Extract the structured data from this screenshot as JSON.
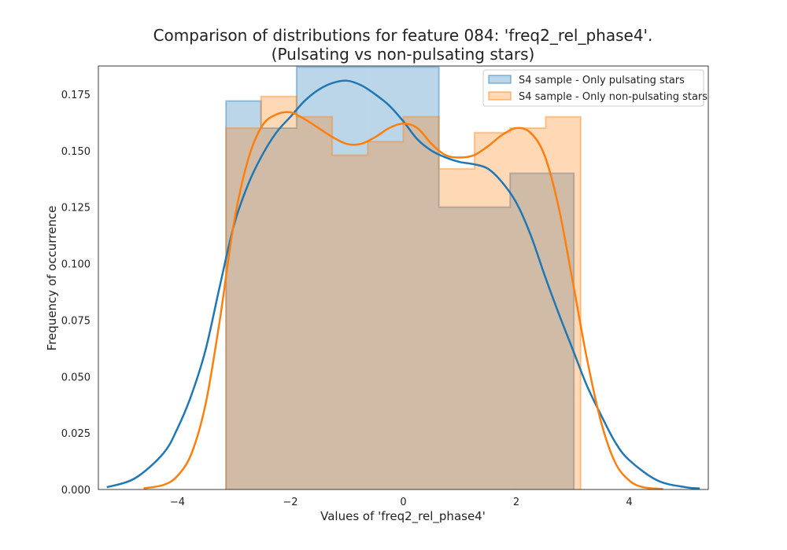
{
  "chart_data": {
    "type": "histogram-kde",
    "title": "Comparison of distributions for feature 084: 'freq2_rel_phase4'.",
    "subtitle": "(Pulsating vs non-pulsating stars)",
    "xlabel": "Values of 'freq2_rel_phase4'",
    "ylabel": "Frequency of occurrence",
    "xlim": [
      -5.4,
      5.4
    ],
    "ylim": [
      0,
      0.1875
    ],
    "x_ticks": [
      -4,
      -2,
      0,
      2,
      4
    ],
    "x_tick_labels": [
      "−4",
      "−2",
      "0",
      "2",
      "4"
    ],
    "y_ticks": [
      0.0,
      0.025,
      0.05,
      0.075,
      0.1,
      0.125,
      0.15,
      0.175
    ],
    "y_tick_labels": [
      "0.000",
      "0.025",
      "0.050",
      "0.075",
      "0.100",
      "0.125",
      "0.150",
      "0.175"
    ],
    "grid": false,
    "legend_position": "top-right",
    "series": [
      {
        "name": "S4 sample - Only pulsating stars",
        "color": "#1f77b4",
        "hist_edges": [
          -3.14,
          -2.52,
          -1.89,
          -0.63,
          0.63,
          1.89,
          3.02
        ],
        "hist_values": [
          0.172,
          0.16,
          0.187,
          0.187,
          0.125,
          0.14
        ],
        "kde_x": [
          -5.25,
          -4.75,
          -4.25,
          -4.0,
          -3.75,
          -3.5,
          -3.25,
          -3.0,
          -2.75,
          -2.5,
          -2.25,
          -2.0,
          -1.75,
          -1.5,
          -1.25,
          -1.0,
          -0.75,
          -0.5,
          -0.25,
          0.0,
          0.25,
          0.5,
          0.75,
          1.0,
          1.25,
          1.5,
          1.75,
          2.0,
          2.25,
          2.5,
          2.75,
          3.0,
          3.25,
          3.5,
          3.75,
          4.0,
          4.5,
          5.0,
          5.25
        ],
        "kde_y": [
          0.001,
          0.005,
          0.016,
          0.027,
          0.042,
          0.062,
          0.09,
          0.117,
          0.135,
          0.148,
          0.158,
          0.165,
          0.172,
          0.177,
          0.18,
          0.181,
          0.179,
          0.175,
          0.17,
          0.163,
          0.155,
          0.15,
          0.147,
          0.145,
          0.144,
          0.142,
          0.136,
          0.127,
          0.113,
          0.095,
          0.078,
          0.062,
          0.046,
          0.033,
          0.021,
          0.013,
          0.004,
          0.001,
          0.0005
        ]
      },
      {
        "name": "S4 sample - Only non-pulsating stars",
        "color": "#ff7f0e",
        "hist_edges": [
          -3.14,
          -2.52,
          -1.89,
          -1.26,
          -0.63,
          0.0,
          0.63,
          1.26,
          1.89,
          2.52,
          3.14
        ],
        "hist_values": [
          0.16,
          0.174,
          0.165,
          0.148,
          0.154,
          0.165,
          0.142,
          0.158,
          0.16,
          0.165
        ],
        "kde_x": [
          -4.6,
          -4.25,
          -4.0,
          -3.75,
          -3.5,
          -3.25,
          -3.0,
          -2.75,
          -2.5,
          -2.25,
          -2.0,
          -1.75,
          -1.5,
          -1.25,
          -1.0,
          -0.75,
          -0.5,
          -0.25,
          0.0,
          0.25,
          0.5,
          0.75,
          1.0,
          1.25,
          1.5,
          1.75,
          2.0,
          2.25,
          2.5,
          2.75,
          3.0,
          3.25,
          3.5,
          3.75,
          4.0,
          4.25,
          4.6
        ],
        "kde_y": [
          0.0005,
          0.002,
          0.006,
          0.016,
          0.038,
          0.075,
          0.118,
          0.146,
          0.161,
          0.166,
          0.167,
          0.164,
          0.16,
          0.156,
          0.153,
          0.153,
          0.156,
          0.16,
          0.162,
          0.16,
          0.153,
          0.148,
          0.147,
          0.148,
          0.152,
          0.157,
          0.16,
          0.158,
          0.148,
          0.125,
          0.092,
          0.058,
          0.03,
          0.012,
          0.004,
          0.001,
          0.0002
        ]
      }
    ]
  }
}
